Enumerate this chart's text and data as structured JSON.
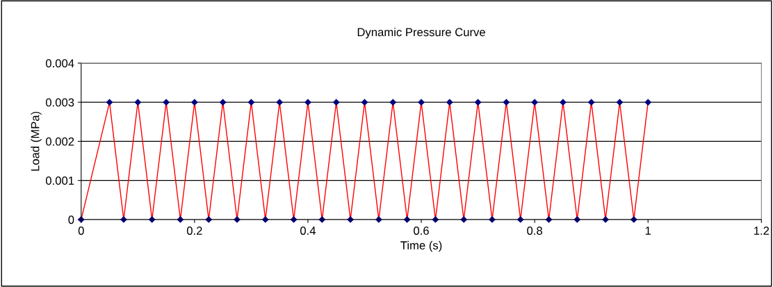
{
  "chart_data": {
    "type": "line",
    "title": "Dynamic Pressure Curve",
    "xlabel": "Time (s)",
    "ylabel": "Load (MPa)",
    "x": [
      0,
      0.05,
      0.075,
      0.1,
      0.125,
      0.15,
      0.175,
      0.2,
      0.225,
      0.25,
      0.275,
      0.3,
      0.325,
      0.35,
      0.375,
      0.4,
      0.425,
      0.45,
      0.475,
      0.5,
      0.525,
      0.55,
      0.575,
      0.6,
      0.625,
      0.65,
      0.675,
      0.7,
      0.725,
      0.75,
      0.775,
      0.8,
      0.825,
      0.85,
      0.875,
      0.9,
      0.925,
      0.95,
      0.975,
      1.0
    ],
    "series": [
      {
        "color": "#ff0000",
        "values": [
          0,
          0.003,
          0,
          0.003,
          0,
          0.003,
          0,
          0.003,
          0,
          0.003,
          0,
          0.003,
          0,
          0.003,
          0,
          0.003,
          0,
          0.003,
          0,
          0.003,
          0,
          0.003,
          0,
          0.003,
          0,
          0.003,
          0,
          0.003,
          0,
          0.003,
          0,
          0.003,
          0,
          0.003,
          0,
          0.003,
          0,
          0.003,
          0,
          0.003
        ]
      }
    ],
    "xlim": [
      0,
      1.2
    ],
    "xticks": [
      0,
      0.2,
      0.4,
      0.6,
      0.8,
      1,
      1.2
    ],
    "ylim": [
      0,
      0.004
    ],
    "yticks": [
      0,
      0.001,
      0.002,
      0.003,
      0.004
    ],
    "grid": "y",
    "marker": "diamond",
    "line_style": "solid",
    "legend": false
  }
}
